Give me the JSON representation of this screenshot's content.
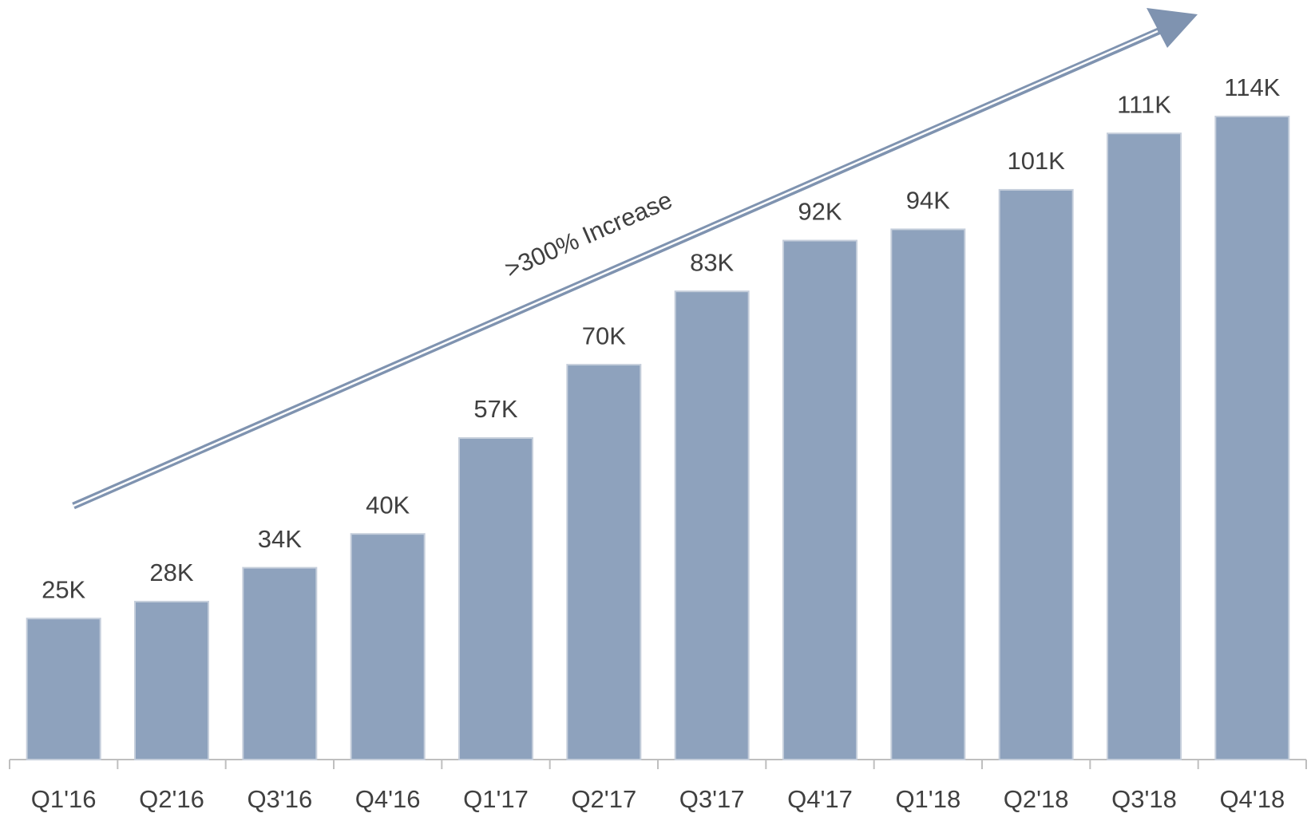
{
  "chart_data": {
    "type": "bar",
    "annotation": ">300% Increase",
    "categories": [
      "Q1'16",
      "Q2'16",
      "Q3'16",
      "Q4'16",
      "Q1'17",
      "Q2'17",
      "Q3'17",
      "Q4'17",
      "Q1'18",
      "Q2'18",
      "Q3'18",
      "Q4'18"
    ],
    "values": [
      25,
      28,
      34,
      40,
      57,
      70,
      83,
      92,
      94,
      101,
      111,
      114
    ],
    "value_labels": [
      "25K",
      "28K",
      "34K",
      "40K",
      "57K",
      "70K",
      "83K",
      "92K",
      "94K",
      "101K",
      "111K",
      "114K"
    ],
    "color": "#8ea2bd"
  }
}
